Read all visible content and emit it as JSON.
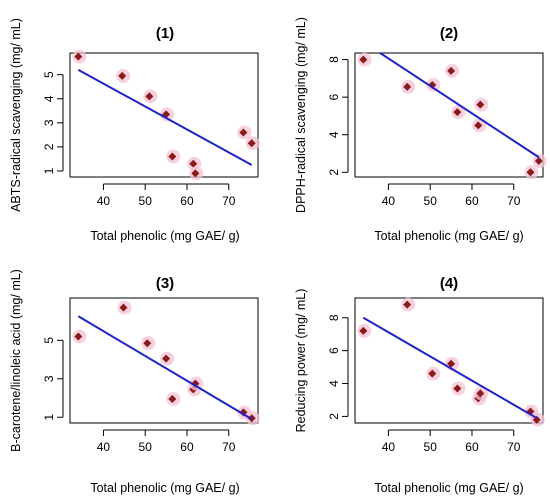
{
  "colors": {
    "point": "#8b1a1a",
    "point_halo": "#f4c2d6",
    "fit_line": "#1e22c8",
    "axes": "#000000"
  },
  "chart_data": [
    {
      "type": "scatter",
      "title": "(1)",
      "xlabel": "Total phenolic (mg GAE/ g)",
      "ylabel": "ABTS-radical scavenging (mg/ mL)",
      "xlim": [
        32,
        77
      ],
      "ylim": [
        0.75,
        5.9
      ],
      "xticks": [
        40,
        50,
        60,
        70
      ],
      "yticks": [
        1,
        2,
        3,
        4,
        5
      ],
      "points": [
        {
          "x": 34.0,
          "y": 5.75
        },
        {
          "x": 44.5,
          "y": 4.95
        },
        {
          "x": 51.0,
          "y": 4.1
        },
        {
          "x": 55.0,
          "y": 3.35
        },
        {
          "x": 56.5,
          "y": 1.6
        },
        {
          "x": 61.5,
          "y": 1.3
        },
        {
          "x": 62.0,
          "y": 0.9
        },
        {
          "x": 73.5,
          "y": 2.6
        },
        {
          "x": 75.5,
          "y": 2.15
        }
      ],
      "fit": {
        "x1": 34,
        "y1": 5.2,
        "x2": 75.5,
        "y2": 1.25
      }
    },
    {
      "type": "scatter",
      "title": "(2)",
      "xlabel": "Total phenolic (mg GAE/ g)",
      "ylabel": "DPPH-radical scavenging (mg/ mL)",
      "xlim": [
        32,
        77
      ],
      "ylim": [
        1.75,
        8.35
      ],
      "xticks": [
        40,
        50,
        60,
        70
      ],
      "yticks": [
        2,
        4,
        6,
        8
      ],
      "points": [
        {
          "x": 34.0,
          "y": 8.0
        },
        {
          "x": 44.5,
          "y": 6.55
        },
        {
          "x": 50.5,
          "y": 6.65
        },
        {
          "x": 55.0,
          "y": 7.4
        },
        {
          "x": 56.5,
          "y": 5.2
        },
        {
          "x": 61.5,
          "y": 4.5
        },
        {
          "x": 62.0,
          "y": 5.6
        },
        {
          "x": 74.0,
          "y": 2.0
        },
        {
          "x": 76.0,
          "y": 2.6
        }
      ],
      "fit": {
        "x1": 38,
        "y1": 8.35,
        "x2": 76,
        "y2": 2.8
      }
    },
    {
      "type": "scatter",
      "title": "(3)",
      "xlabel": "Total phenolic (mg GAE/ g)",
      "ylabel": "B-carotene/linoleic acid (mg/ mL)",
      "xlim": [
        32,
        77
      ],
      "ylim": [
        0.7,
        7.2
      ],
      "xticks": [
        40,
        50,
        60,
        70
      ],
      "yticks": [
        1,
        3,
        5
      ],
      "points": [
        {
          "x": 34.0,
          "y": 5.2
        },
        {
          "x": 44.8,
          "y": 6.7
        },
        {
          "x": 50.5,
          "y": 4.85
        },
        {
          "x": 55.0,
          "y": 4.05
        },
        {
          "x": 56.5,
          "y": 1.95
        },
        {
          "x": 61.5,
          "y": 2.45
        },
        {
          "x": 62.0,
          "y": 2.75
        },
        {
          "x": 73.5,
          "y": 1.25
        },
        {
          "x": 75.5,
          "y": 0.95
        }
      ],
      "fit": {
        "x1": 34,
        "y1": 6.25,
        "x2": 75.5,
        "y2": 0.9
      }
    },
    {
      "type": "scatter",
      "title": "(4)",
      "xlabel": "Total phenolic (mg GAE/ g)",
      "ylabel": "Reducing power (mg/ mL)",
      "xlim": [
        32,
        77
      ],
      "ylim": [
        1.6,
        9.2
      ],
      "xticks": [
        40,
        50,
        60,
        70
      ],
      "yticks": [
        2,
        4,
        6,
        8
      ],
      "points": [
        {
          "x": 34.0,
          "y": 7.2
        },
        {
          "x": 44.5,
          "y": 8.8
        },
        {
          "x": 50.5,
          "y": 4.6
        },
        {
          "x": 55.0,
          "y": 5.2
        },
        {
          "x": 56.5,
          "y": 3.7
        },
        {
          "x": 61.5,
          "y": 3.1
        },
        {
          "x": 62.0,
          "y": 3.4
        },
        {
          "x": 74.0,
          "y": 2.3
        },
        {
          "x": 75.5,
          "y": 1.8
        }
      ],
      "fit": {
        "x1": 34,
        "y1": 8.0,
        "x2": 75.5,
        "y2": 1.9
      }
    }
  ]
}
